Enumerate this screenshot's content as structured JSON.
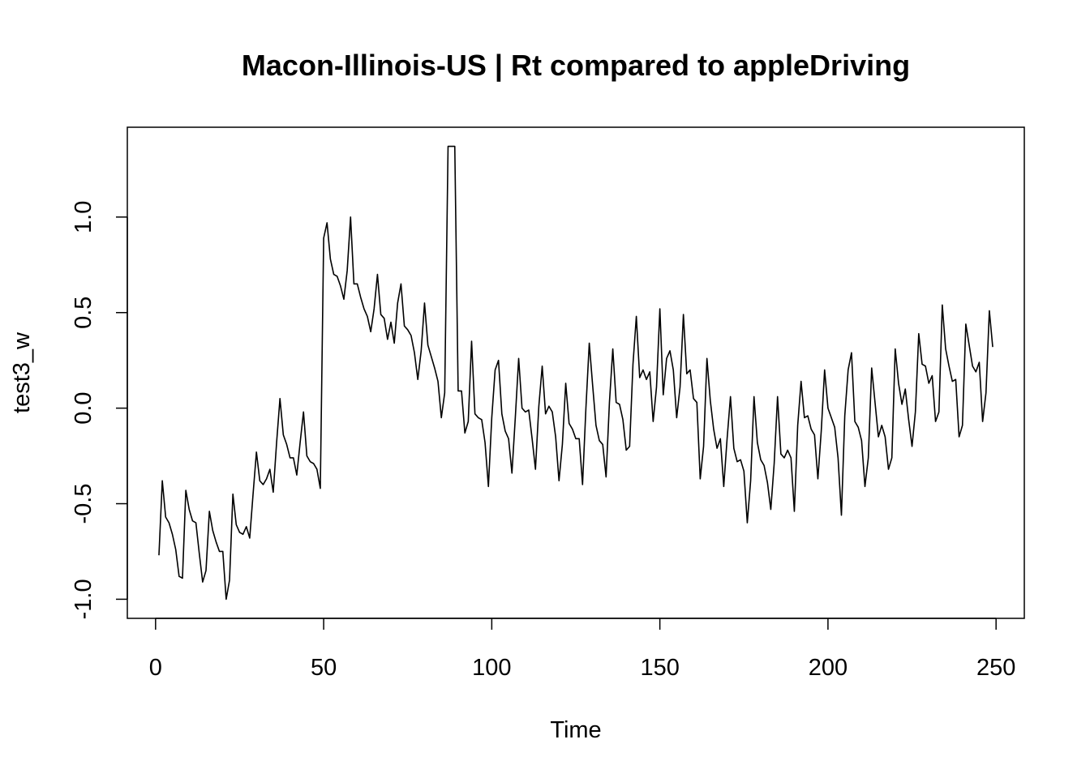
{
  "chart_data": {
    "type": "line",
    "title": "Macon-Illinois-US | Rt compared to appleDriving",
    "xlabel": "Time",
    "ylabel": "test3_w",
    "xlim": [
      -8.4,
      258.4
    ],
    "ylim": [
      -1.1,
      1.47
    ],
    "xticks": [
      0,
      50,
      100,
      150,
      200,
      250
    ],
    "xtick_labels": [
      "0",
      "50",
      "100",
      "150",
      "200",
      "250"
    ],
    "yticks": [
      -1.0,
      -0.5,
      0.0,
      0.5,
      1.0
    ],
    "ytick_labels": [
      "-1.0",
      "-0.5",
      "0.0",
      "0.5",
      "1.0"
    ],
    "grid": false,
    "legend": "none",
    "series": [
      {
        "color": "#000000",
        "x_start": 1,
        "x_step": 1,
        "values": [
          -0.77,
          -0.38,
          -0.57,
          -0.6,
          -0.66,
          -0.74,
          -0.88,
          -0.89,
          -0.43,
          -0.53,
          -0.59,
          -0.6,
          -0.76,
          -0.91,
          -0.85,
          -0.54,
          -0.64,
          -0.7,
          -0.75,
          -0.75,
          -1.0,
          -0.9,
          -0.45,
          -0.61,
          -0.65,
          -0.66,
          -0.62,
          -0.68,
          -0.45,
          -0.23,
          -0.38,
          -0.4,
          -0.37,
          -0.32,
          -0.44,
          -0.18,
          0.05,
          -0.14,
          -0.19,
          -0.26,
          -0.26,
          -0.35,
          -0.18,
          -0.02,
          -0.25,
          -0.28,
          -0.29,
          -0.32,
          -0.42,
          0.89,
          0.97,
          0.78,
          0.7,
          0.69,
          0.64,
          0.57,
          0.72,
          1.0,
          0.65,
          0.65,
          0.58,
          0.52,
          0.48,
          0.4,
          0.52,
          0.7,
          0.49,
          0.47,
          0.36,
          0.45,
          0.34,
          0.55,
          0.65,
          0.43,
          0.41,
          0.38,
          0.29,
          0.15,
          0.3,
          0.55,
          0.33,
          0.27,
          0.21,
          0.14,
          -0.05,
          0.08,
          1.37,
          1.37,
          1.37,
          0.09,
          0.09,
          -0.13,
          -0.07,
          0.35,
          -0.03,
          -0.05,
          -0.06,
          -0.18,
          -0.41,
          -0.05,
          0.2,
          0.25,
          -0.03,
          -0.12,
          -0.16,
          -0.34,
          -0.05,
          0.26,
          0.0,
          -0.02,
          -0.01,
          -0.16,
          -0.32,
          0.01,
          0.22,
          -0.03,
          0.01,
          -0.02,
          -0.15,
          -0.38,
          -0.19,
          0.13,
          -0.08,
          -0.11,
          -0.16,
          -0.16,
          -0.4,
          0.0,
          0.34,
          0.12,
          -0.09,
          -0.17,
          -0.19,
          -0.36,
          0.03,
          0.31,
          0.03,
          0.02,
          -0.06,
          -0.22,
          -0.2,
          0.23,
          0.48,
          0.16,
          0.2,
          0.15,
          0.19,
          -0.07,
          0.11,
          0.52,
          0.07,
          0.26,
          0.3,
          0.2,
          -0.05,
          0.11,
          0.49,
          0.18,
          0.2,
          0.05,
          0.03,
          -0.37,
          -0.2,
          0.26,
          0.04,
          -0.11,
          -0.21,
          -0.16,
          -0.41,
          -0.16,
          0.06,
          -0.21,
          -0.28,
          -0.27,
          -0.33,
          -0.6,
          -0.38,
          0.06,
          -0.18,
          -0.27,
          -0.3,
          -0.39,
          -0.53,
          -0.29,
          0.06,
          -0.24,
          -0.26,
          -0.22,
          -0.26,
          -0.54,
          -0.09,
          0.14,
          -0.05,
          -0.04,
          -0.11,
          -0.14,
          -0.37,
          -0.12,
          0.2,
          0.0,
          -0.05,
          -0.1,
          -0.26,
          -0.56,
          -0.04,
          0.2,
          0.29,
          -0.07,
          -0.1,
          -0.17,
          -0.41,
          -0.26,
          0.21,
          0.03,
          -0.15,
          -0.09,
          -0.15,
          -0.32,
          -0.26,
          0.31,
          0.13,
          0.02,
          0.1,
          -0.06,
          -0.2,
          -0.02,
          0.39,
          0.23,
          0.22,
          0.13,
          0.17,
          -0.07,
          -0.02,
          0.54,
          0.31,
          0.22,
          0.14,
          0.15,
          -0.15,
          -0.09,
          0.44,
          0.33,
          0.22,
          0.19,
          0.24,
          -0.07,
          0.08,
          0.51,
          0.32
        ]
      }
    ]
  }
}
